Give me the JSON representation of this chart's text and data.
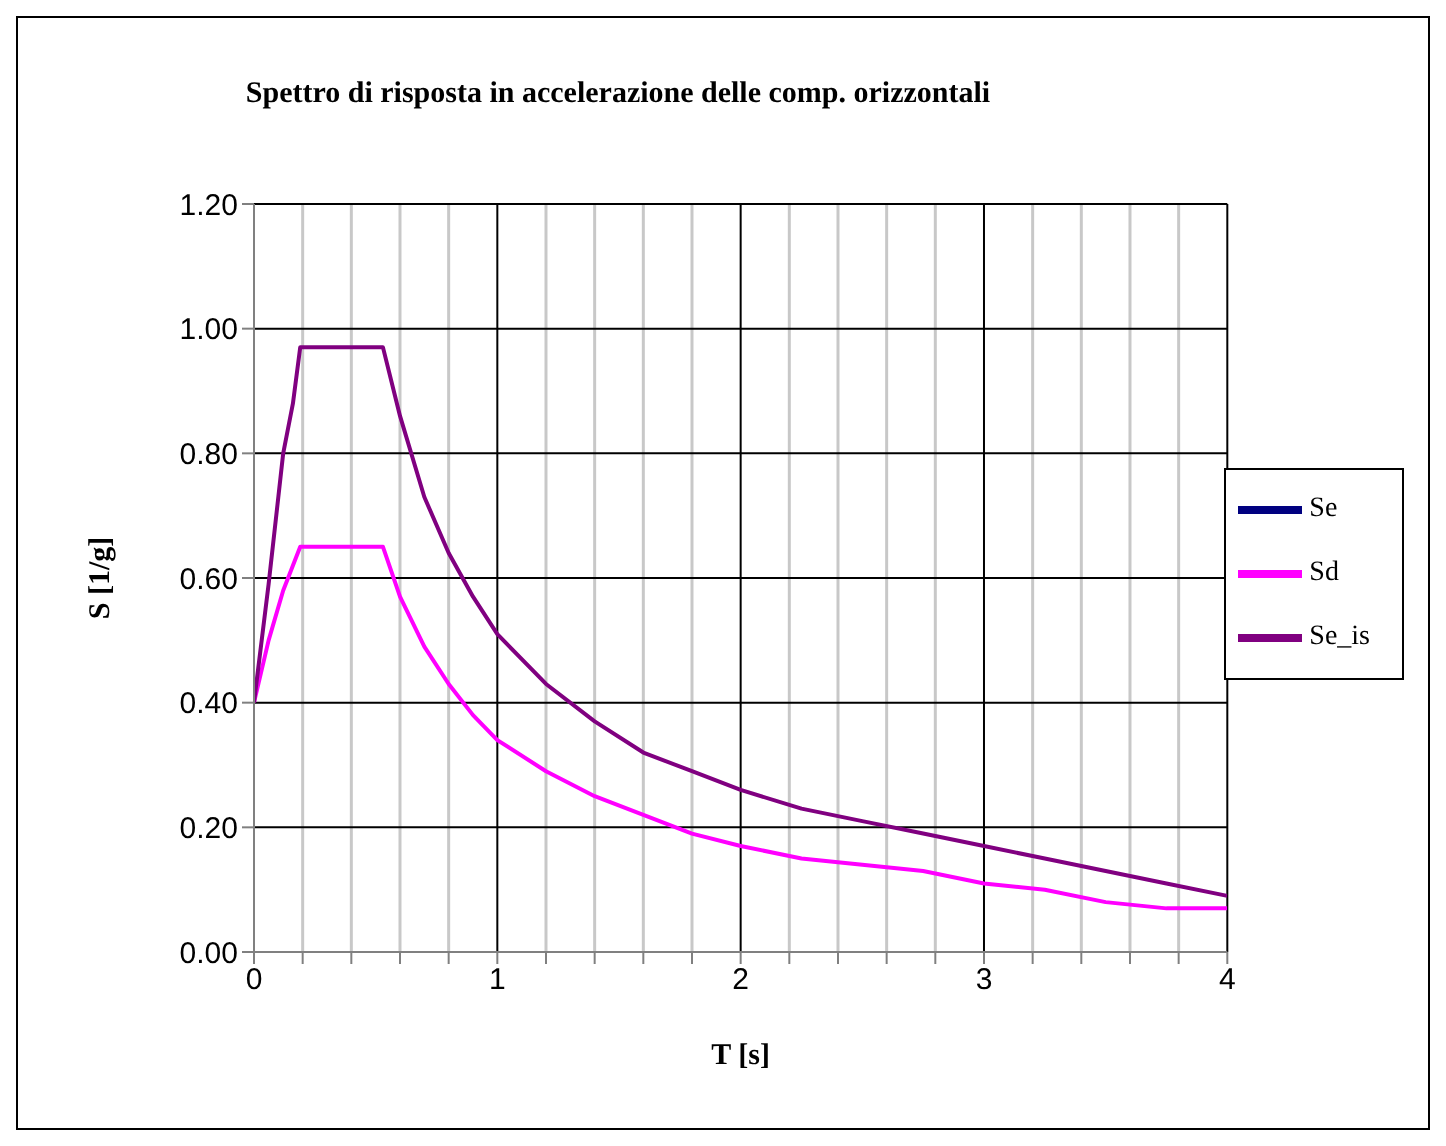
{
  "chart_data": {
    "type": "line",
    "title": "Spettro di risposta in accelerazione delle comp. orizzontali",
    "xlabel": "T [s]",
    "ylabel": "S [1/g]",
    "x": [
      0,
      0.06,
      0.12,
      0.16,
      0.19,
      0.53,
      0.6,
      0.7,
      0.8,
      0.9,
      1.0,
      1.2,
      1.4,
      1.6,
      1.8,
      2.0,
      2.25,
      2.5,
      2.75,
      3.0,
      3.25,
      3.5,
      3.75,
      4.0
    ],
    "series": [
      {
        "name": "Se",
        "color": "#000080",
        "values": [
          null,
          null,
          null,
          null,
          null,
          null,
          null,
          null,
          null,
          null,
          null,
          null,
          null,
          null,
          null,
          null,
          null,
          null,
          null,
          null,
          null,
          null,
          null,
          null
        ]
      },
      {
        "name": "Sd",
        "color": "#ff00ff",
        "values": [
          0.4,
          0.5,
          0.58,
          0.62,
          0.65,
          0.65,
          0.57,
          0.49,
          0.43,
          0.38,
          0.34,
          0.29,
          0.25,
          0.22,
          0.19,
          0.17,
          0.15,
          0.14,
          0.13,
          0.11,
          0.1,
          0.08,
          0.07,
          0.07
        ]
      },
      {
        "name": "Se_is",
        "color": "#800080",
        "values": [
          0.4,
          0.59,
          0.8,
          0.88,
          0.97,
          0.97,
          0.86,
          0.73,
          0.64,
          0.57,
          0.51,
          0.43,
          0.37,
          0.32,
          0.29,
          0.26,
          0.23,
          0.21,
          0.19,
          0.17,
          0.15,
          0.13,
          0.11,
          0.09
        ]
      }
    ],
    "xlim": [
      0,
      4
    ],
    "ylim": [
      0,
      1.2
    ],
    "xticks": [
      0,
      {
        "value": 0.2,
        "label": null
      },
      {
        "value": 0.4,
        "label": null
      },
      {
        "value": 0.6,
        "label": null
      },
      {
        "value": 0.8,
        "label": null
      },
      1,
      {
        "value": 1.2,
        "label": null
      },
      {
        "value": 1.4,
        "label": null
      },
      {
        "value": 1.6,
        "label": null
      },
      {
        "value": 1.8,
        "label": null
      },
      2,
      {
        "value": 2.2,
        "label": null
      },
      {
        "value": 2.4,
        "label": null
      },
      {
        "value": 2.6,
        "label": null
      },
      {
        "value": 2.8,
        "label": null
      },
      3,
      {
        "value": 3.2,
        "label": null
      },
      {
        "value": 3.4,
        "label": null
      },
      {
        "value": 3.6,
        "label": null
      },
      {
        "value": 3.8,
        "label": null
      },
      4
    ],
    "yticks": [
      {
        "value": 0,
        "label": "0.00"
      },
      {
        "value": 0.2,
        "label": "0.20"
      },
      {
        "value": 0.4,
        "label": "0.40"
      },
      {
        "value": 0.6,
        "label": "0.60"
      },
      {
        "value": 0.8,
        "label": "0.80"
      },
      {
        "value": 1.0,
        "label": "1.00"
      },
      {
        "value": 1.2,
        "label": "1.20"
      }
    ],
    "grid": true,
    "legend": "right",
    "line_style": "solid",
    "marker": "none"
  }
}
